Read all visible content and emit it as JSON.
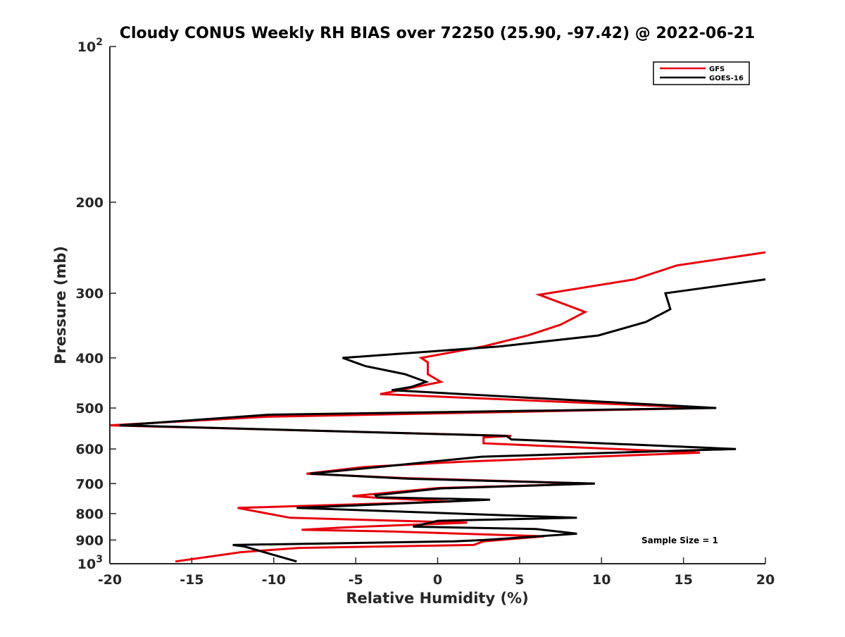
{
  "chart_data": {
    "type": "line",
    "title": "Cloudy CONUS Weekly RH BIAS over 72250 (25.90, -97.42) @ 2022-06-21",
    "xlabel": "Relative Humidity (%)",
    "ylabel": "Pressure (mb)",
    "xlim": [
      -20,
      20
    ],
    "ylim": [
      100,
      1000
    ],
    "yscale": "log",
    "y_reversed": true,
    "x_ticks": [
      "-20",
      "-15",
      "-10",
      "-5",
      "0",
      "5",
      "10",
      "15",
      "20"
    ],
    "y_ticks": [
      {
        "value": 200,
        "label": "200"
      },
      {
        "value": 300,
        "label": "300"
      },
      {
        "value": 400,
        "label": "400"
      },
      {
        "value": 500,
        "label": "500"
      },
      {
        "value": 600,
        "label": "600"
      },
      {
        "value": 700,
        "label": "700"
      },
      {
        "value": 800,
        "label": "800"
      },
      {
        "value": 900,
        "label": "900"
      }
    ],
    "y_power_ticks": [
      {
        "value": 100,
        "base": "10",
        "exp": "2"
      },
      {
        "value": 1000,
        "base": "10",
        "exp": "3"
      }
    ],
    "legend_position": "top-right",
    "annotation": "Sample Size = 1",
    "series": [
      {
        "name": "GFS",
        "color": "#e8000b",
        "points": [
          [
            20,
            250
          ],
          [
            14.6,
            265
          ],
          [
            12,
            282
          ],
          [
            6.2,
            302
          ],
          [
            9,
            326
          ],
          [
            7.5,
            345
          ],
          [
            5.5,
            362
          ],
          [
            2.8,
            380
          ],
          [
            -1,
            400
          ],
          [
            -0.6,
            408
          ],
          [
            -0.6,
            430
          ],
          [
            0.2,
            445
          ],
          [
            -3.5,
            470
          ],
          [
            16.5,
            500
          ],
          [
            -10.5,
            520
          ],
          [
            -20,
            540
          ],
          [
            4.5,
            566
          ],
          [
            2.8,
            570
          ],
          [
            2.8,
            585
          ],
          [
            16,
            610
          ],
          [
            1.5,
            635
          ],
          [
            -4.5,
            650
          ],
          [
            -8,
            670
          ],
          [
            -2,
            683
          ],
          [
            9.5,
            700
          ],
          [
            0,
            714
          ],
          [
            -5.2,
            740
          ],
          [
            -3.8,
            745
          ],
          [
            0.8,
            758
          ],
          [
            -12.2,
            780
          ],
          [
            -9,
            815
          ],
          [
            1.8,
            833
          ],
          [
            -5.5,
            850
          ],
          [
            -8.3,
            860
          ],
          [
            -3,
            866
          ],
          [
            6.5,
            885
          ],
          [
            2.8,
            905
          ],
          [
            2.2,
            920
          ],
          [
            -8.5,
            932
          ],
          [
            -12,
            950
          ],
          [
            -16,
            990
          ]
        ]
      },
      {
        "name": "GOES-16",
        "color": "#000000",
        "points": [
          [
            20,
            282
          ],
          [
            13.9,
            300
          ],
          [
            14.2,
            322
          ],
          [
            12.7,
            341
          ],
          [
            9.8,
            362
          ],
          [
            3.8,
            380
          ],
          [
            -5.8,
            400
          ],
          [
            -4.4,
            415
          ],
          [
            -2,
            430
          ],
          [
            -0.7,
            445
          ],
          [
            -1.6,
            455
          ],
          [
            -2.8,
            462
          ],
          [
            17,
            500
          ],
          [
            -10.3,
            515
          ],
          [
            -19.4,
            540
          ],
          [
            4.2,
            566
          ],
          [
            4.5,
            575
          ],
          [
            18.2,
            600
          ],
          [
            2.7,
            621
          ],
          [
            -3.6,
            650
          ],
          [
            -7.8,
            670
          ],
          [
            -1.8,
            685
          ],
          [
            9.6,
            700
          ],
          [
            0.2,
            715
          ],
          [
            -3.8,
            737
          ],
          [
            -3.7,
            744
          ],
          [
            3.2,
            752
          ],
          [
            -8.6,
            780
          ],
          [
            8.5,
            815
          ],
          [
            0,
            826
          ],
          [
            -1.5,
            848
          ],
          [
            6,
            857
          ],
          [
            8.5,
            875
          ],
          [
            2.8,
            900
          ],
          [
            1,
            905
          ],
          [
            -12.5,
            920
          ],
          [
            -11.8,
            926
          ],
          [
            -8.6,
            990
          ]
        ]
      }
    ]
  }
}
